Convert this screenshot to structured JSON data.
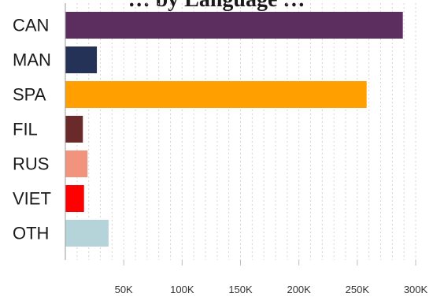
{
  "chart_data": {
    "type": "bar",
    "orientation": "horizontal",
    "title": "… by Language …",
    "categories": [
      "CAN",
      "MAN",
      "SPA",
      "FIL",
      "RUS",
      "VIET",
      "OTH"
    ],
    "values": [
      289000,
      27000,
      258000,
      15000,
      19000,
      16000,
      37000
    ],
    "colors": [
      "#5c2d5f",
      "#253257",
      "#ff9f00",
      "#6b2a2a",
      "#f2937e",
      "#ff0000",
      "#b5d4da"
    ],
    "xlim": [
      0,
      300000
    ],
    "x_ticks": [
      {
        "value": 50000,
        "label": "50K"
      },
      {
        "value": 100000,
        "label": "100K"
      },
      {
        "value": 150000,
        "label": "150K"
      },
      {
        "value": 200000,
        "label": "200K"
      },
      {
        "value": 250000,
        "label": "250K"
      },
      {
        "value": 300000,
        "label": "300K"
      }
    ],
    "x_gridline_step": 10000,
    "grid": true,
    "xlabel": "",
    "ylabel": ""
  }
}
